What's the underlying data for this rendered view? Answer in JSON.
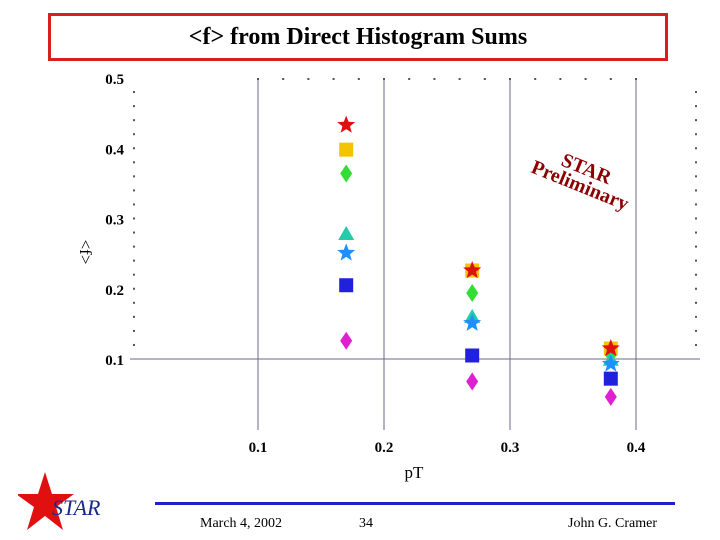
{
  "slide": {
    "title": "<f> from Direct Histogram Sums",
    "footer": {
      "date": "March 4, 2002",
      "page": "34",
      "author": "John G. Cramer"
    },
    "logo_text": "STAR",
    "watermark": {
      "line1": "STAR",
      "line2": "Preliminary",
      "color": "#8b0000"
    }
  },
  "chart_data": {
    "type": "scatter",
    "title": "",
    "xlabel": "pT",
    "ylabel": "<f>",
    "xlim": [
      0.0,
      0.45
    ],
    "ylim": [
      0.0,
      0.5
    ],
    "x_ticks": [
      0.1,
      0.2,
      0.3,
      0.4
    ],
    "y_ticks": [
      0.1,
      0.2,
      0.3,
      0.4,
      0.5
    ],
    "x_tick_labels": [
      "0.1",
      "0.2",
      "0.3",
      "0.4"
    ],
    "y_tick_labels": [
      "0.1",
      "0.2",
      "0.3",
      "0.4",
      "0.5"
    ],
    "grid": "lines at x=0.1, 0.2, 0.3, 0.4 and y=0.1",
    "series": [
      {
        "marker": "star",
        "color": "#e01010",
        "x": [
          0.17,
          0.27,
          0.38
        ],
        "y": [
          0.433,
          0.226,
          0.115
        ]
      },
      {
        "marker": "square",
        "color": "#f5c400",
        "x": [
          0.17,
          0.27,
          0.38
        ],
        "y": [
          0.398,
          0.226,
          0.115
        ]
      },
      {
        "marker": "diamond",
        "color": "#33dd33",
        "x": [
          0.17,
          0.27,
          0.38
        ],
        "y": [
          0.364,
          0.194,
          0.106
        ]
      },
      {
        "marker": "triangle",
        "color": "#22ccaa",
        "x": [
          0.17,
          0.27,
          0.38
        ],
        "y": [
          0.278,
          0.16,
          0.099
        ]
      },
      {
        "marker": "star",
        "color": "#1e90ff",
        "x": [
          0.17,
          0.27,
          0.38
        ],
        "y": [
          0.251,
          0.151,
          0.093
        ]
      },
      {
        "marker": "square",
        "color": "#2020dd",
        "x": [
          0.17,
          0.27,
          0.38
        ],
        "y": [
          0.205,
          0.105,
          0.072
        ]
      },
      {
        "marker": "diamond",
        "color": "#e020d0",
        "x": [
          0.17,
          0.27,
          0.38
        ],
        "y": [
          0.126,
          0.068,
          0.046
        ]
      }
    ]
  }
}
